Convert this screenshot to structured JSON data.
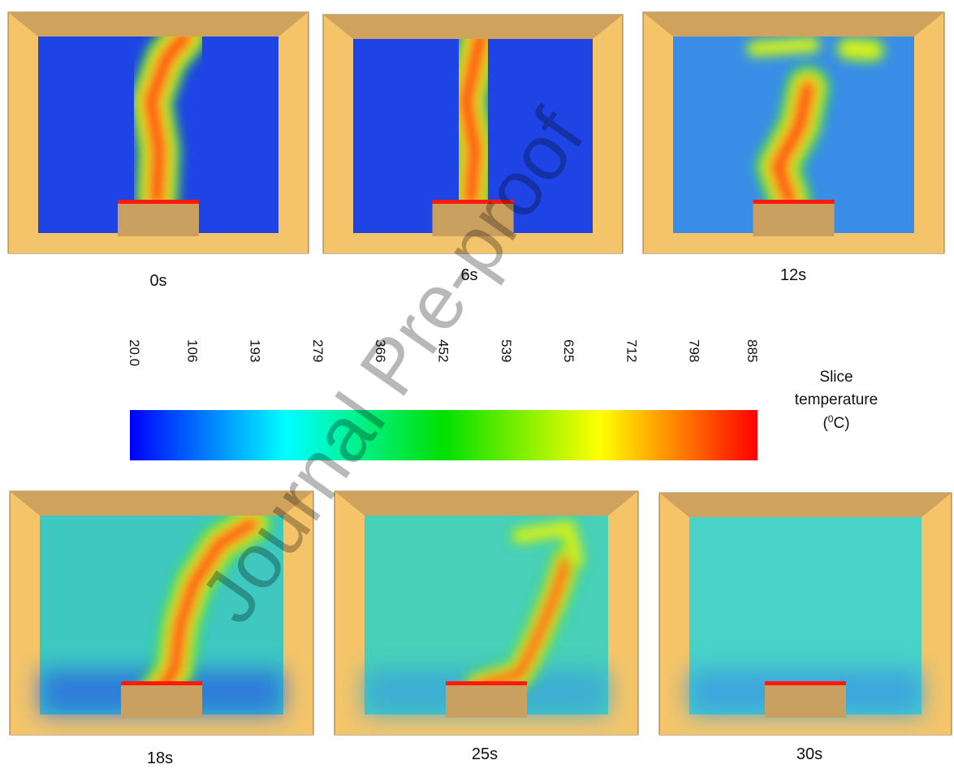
{
  "panels": [
    {
      "label": "0s"
    },
    {
      "label": "6s"
    },
    {
      "label": "12s"
    },
    {
      "label": "18s"
    },
    {
      "label": "25s"
    },
    {
      "label": "30s"
    }
  ],
  "colorbar": {
    "ticks": [
      "20.0",
      "106",
      "193",
      "279",
      "366",
      "452",
      "539",
      "625",
      "712",
      "798",
      "885"
    ],
    "title_lines": [
      "Slice",
      "temperature"
    ],
    "unit_open": "(",
    "unit_sup": "0",
    "unit_close": "C)"
  },
  "watermark": "Journal Pre-proof"
}
